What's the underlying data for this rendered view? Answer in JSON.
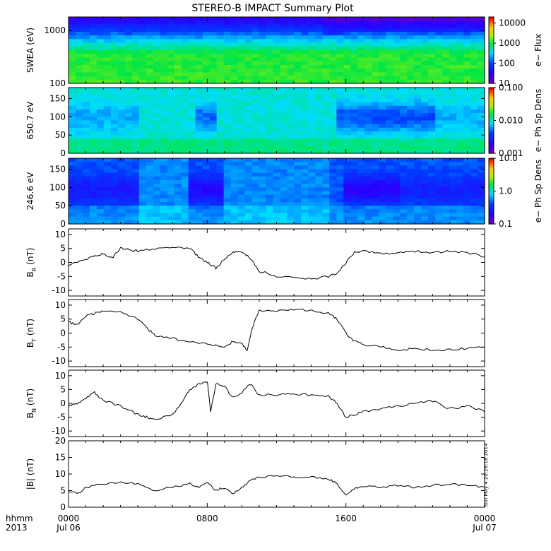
{
  "title": "STEREO-B IMPACT Summary Plot",
  "stamp": "Sun May  4 20:28:18 2014",
  "time_axis": {
    "row1_label": "hhmm",
    "row2_label": "2013",
    "ticks": [
      {
        "t": 0,
        "hhmm": "0000",
        "date": "Jul 06"
      },
      {
        "t": 8,
        "hhmm": "0800",
        "date": ""
      },
      {
        "t": 16,
        "hhmm": "1600",
        "date": ""
      },
      {
        "t": 24,
        "hhmm": "0000",
        "date": "Jul 07"
      }
    ],
    "range_hours": [
      0,
      24
    ]
  },
  "chart_data": [
    {
      "type": "heatmap",
      "ylabel": "SWEA (eV)",
      "y_scale": "log",
      "ylim": [
        100,
        1800
      ],
      "y_ticks": [
        "1000",
        "100"
      ],
      "colorbar": {
        "label": "e− Flux",
        "ticks": [
          "10000",
          "1000",
          "100",
          "10"
        ],
        "scale": "log",
        "range": [
          10,
          20000
        ]
      },
      "description": "energy vs time; high flux (green) below ~600 eV, blue/purple above ~900 eV"
    },
    {
      "type": "heatmap",
      "ylabel": "650.7 eV",
      "ylim": [
        0,
        180
      ],
      "y_ticks": [
        "150",
        "100",
        "50",
        "0"
      ],
      "colorbar": {
        "label": "e− Ph Sp Dens",
        "ticks": [
          "0.100",
          "0.010",
          "0.001"
        ],
        "scale": "log",
        "range": [
          0.001,
          0.1
        ]
      }
    },
    {
      "type": "heatmap",
      "ylabel": "246.6 eV",
      "ylim": [
        0,
        180
      ],
      "y_ticks": [
        "150",
        "100",
        "50",
        "0"
      ],
      "colorbar": {
        "label": "e− Ph Sp Dens",
        "ticks": [
          "10.0",
          "1.0",
          "0.1"
        ],
        "scale": "log",
        "range": [
          0.1,
          10
        ]
      }
    },
    {
      "type": "line",
      "ylabel": "B_R (nT)",
      "ylim": [
        -12,
        12
      ],
      "y_ticks": [
        10,
        5,
        0,
        -5,
        -10
      ],
      "x": [
        0,
        1,
        1.5,
        2,
        2.5,
        3,
        3.5,
        4,
        5,
        6,
        7,
        7.5,
        8,
        8.5,
        9,
        9.5,
        10,
        10.5,
        11,
        12,
        13,
        14,
        15,
        15.5,
        16,
        16.5,
        17,
        18,
        19,
        20,
        21,
        22,
        23,
        24
      ],
      "series": [
        {
          "values": [
            -1,
            1,
            2.5,
            3,
            1.5,
            5,
            4.5,
            4,
            5,
            5.5,
            5,
            2,
            0,
            -2,
            1,
            4,
            3.5,
            1.5,
            -3,
            -5,
            -5.5,
            -6,
            -5,
            -4,
            0,
            3.5,
            4,
            3,
            3.5,
            4,
            3.5,
            4,
            3.5,
            2
          ]
        }
      ]
    },
    {
      "type": "line",
      "ylabel": "B_T (nT)",
      "ylim": [
        -12,
        12
      ],
      "y_ticks": [
        10,
        5,
        0,
        -5,
        -10
      ],
      "x": [
        0,
        0.5,
        1,
        1.5,
        2,
        3,
        4,
        4.5,
        5,
        6,
        7,
        8,
        9,
        9.5,
        10,
        10.3,
        10.6,
        11,
        12,
        13,
        14,
        15,
        15.5,
        16,
        16.5,
        17,
        18,
        19,
        20,
        21,
        22,
        23,
        24
      ],
      "series": [
        {
          "values": [
            4,
            3,
            6,
            7,
            8,
            7.5,
            5,
            2,
            -1,
            -2,
            -3,
            -4,
            -5,
            -3,
            -4,
            -6,
            2,
            8,
            8,
            8.5,
            8,
            7,
            5,
            0,
            -3,
            -4,
            -5,
            -6,
            -5.5,
            -6,
            -6,
            -5.5,
            -5
          ]
        }
      ]
    },
    {
      "type": "line",
      "ylabel": "B_N (nT)",
      "ylim": [
        -12,
        12
      ],
      "y_ticks": [
        10,
        5,
        0,
        -5,
        -10
      ],
      "x": [
        0,
        0.5,
        1,
        1.5,
        2,
        3,
        4,
        4.5,
        5,
        6,
        6.5,
        7,
        7.5,
        8,
        8.2,
        8.5,
        9,
        9.5,
        10,
        10.5,
        11,
        12,
        13,
        14,
        15,
        15.5,
        16,
        16.5,
        17,
        18,
        19,
        20,
        21,
        22,
        23,
        24
      ],
      "series": [
        {
          "values": [
            -1,
            0,
            2,
            4,
            1,
            -1,
            -4,
            -5,
            -6,
            -4,
            0,
            5,
            7,
            8,
            -3,
            7,
            6,
            2,
            4,
            7,
            3,
            3,
            3.5,
            3,
            2.5,
            0,
            -5,
            -4,
            -3,
            -2,
            -1,
            0,
            1,
            -2,
            -1,
            -3
          ]
        }
      ]
    },
    {
      "type": "line",
      "ylabel": "|B| (nT)",
      "ylim": [
        0,
        20
      ],
      "y_ticks": [
        20,
        15,
        10,
        5,
        0
      ],
      "x": [
        0,
        0.5,
        1,
        2,
        3,
        4,
        5,
        6,
        7,
        7.5,
        8,
        8.5,
        9,
        9.5,
        10,
        10.5,
        11,
        12,
        13,
        14,
        15,
        15.5,
        16,
        16.5,
        17,
        18,
        19,
        20,
        21,
        22,
        23,
        24
      ],
      "series": [
        {
          "values": [
            5,
            4,
            6,
            7,
            7.5,
            7,
            5,
            6,
            7,
            6,
            7.5,
            5,
            6,
            4,
            6,
            8,
            9,
            9.5,
            9,
            9,
            8.5,
            7,
            3.5,
            5.5,
            6.5,
            6,
            6.5,
            6,
            6.5,
            7,
            6.5,
            6
          ]
        }
      ]
    }
  ]
}
